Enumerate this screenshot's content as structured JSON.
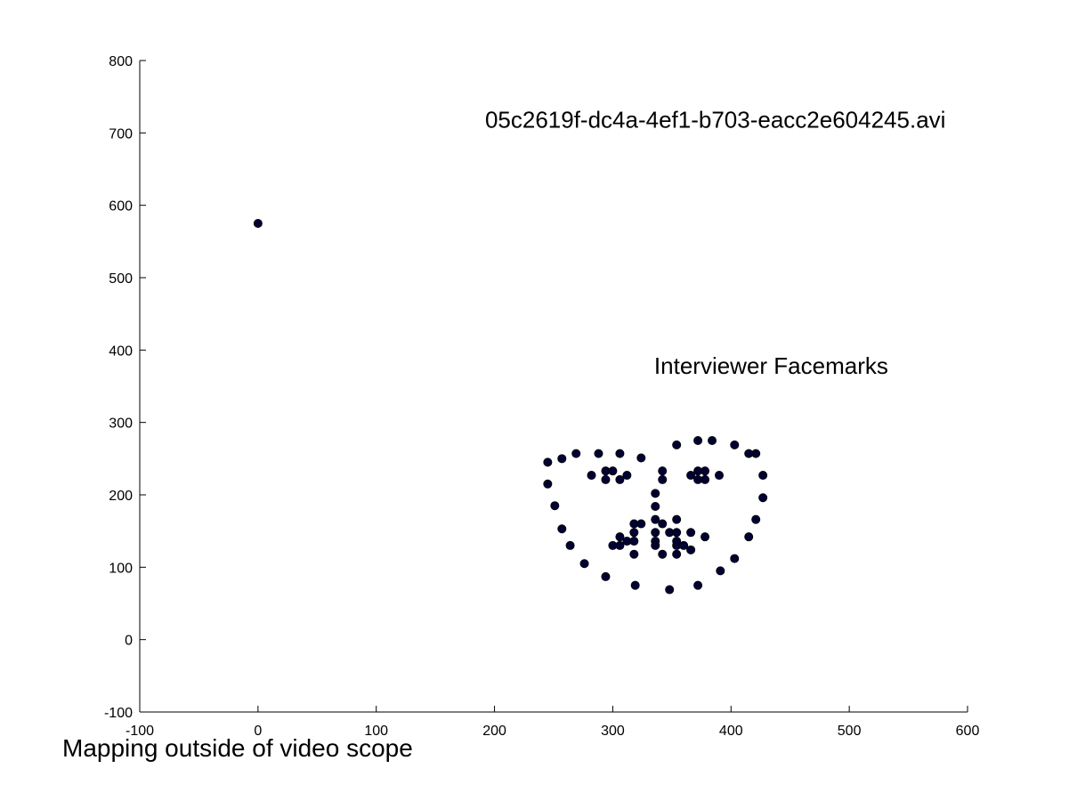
{
  "chart_data": {
    "type": "scatter",
    "title": "",
    "xlabel": "",
    "ylabel": "",
    "xlim": [
      -100,
      600
    ],
    "ylim": [
      -100,
      800
    ],
    "x_ticks": [
      -100,
      0,
      100,
      200,
      300,
      400,
      500,
      600
    ],
    "y_ticks": [
      -100,
      0,
      100,
      200,
      300,
      400,
      500,
      600,
      700,
      800
    ],
    "grid": false,
    "legend": "none",
    "marker_color": "#000033",
    "annotations": [
      {
        "text": "05c2619f-dc4a-4ef1-b703-eacc2e604245.avi",
        "x": 192,
        "y": 700
      },
      {
        "text": "Interviewer Facemarks",
        "x": 335,
        "y": 365
      }
    ],
    "footer_text": "Mapping outside of video scope",
    "series": [
      {
        "points": [
          [
            0,
            575
          ],
          [
            245,
            245
          ],
          [
            245,
            215
          ],
          [
            251,
            185
          ],
          [
            257,
            153
          ],
          [
            264,
            130
          ],
          [
            276,
            105
          ],
          [
            294,
            87
          ],
          [
            319,
            75
          ],
          [
            348,
            69
          ],
          [
            372,
            75
          ],
          [
            391,
            95
          ],
          [
            403,
            112
          ],
          [
            415,
            142
          ],
          [
            421,
            166
          ],
          [
            427,
            196
          ],
          [
            427,
            227
          ],
          [
            421,
            257
          ],
          [
            257,
            250
          ],
          [
            269,
            257
          ],
          [
            288,
            257
          ],
          [
            306,
            257
          ],
          [
            324,
            251
          ],
          [
            354,
            269
          ],
          [
            372,
            275
          ],
          [
            384,
            275
          ],
          [
            403,
            269
          ],
          [
            415,
            257
          ],
          [
            342,
            233
          ],
          [
            342,
            221
          ],
          [
            336,
            202
          ],
          [
            336,
            184
          ],
          [
            336,
            166
          ],
          [
            318,
            160
          ],
          [
            324,
            160
          ],
          [
            342,
            160
          ],
          [
            354,
            166
          ],
          [
            282,
            227
          ],
          [
            294,
            233
          ],
          [
            300,
            233
          ],
          [
            312,
            227
          ],
          [
            306,
            221
          ],
          [
            294,
            221
          ],
          [
            366,
            227
          ],
          [
            372,
            233
          ],
          [
            378,
            233
          ],
          [
            390,
            227
          ],
          [
            378,
            221
          ],
          [
            372,
            221
          ],
          [
            300,
            130
          ],
          [
            306,
            142
          ],
          [
            312,
            136
          ],
          [
            318,
            148
          ],
          [
            318,
            136
          ],
          [
            336,
            148
          ],
          [
            336,
            136
          ],
          [
            348,
            148
          ],
          [
            354,
            148
          ],
          [
            366,
            148
          ],
          [
            378,
            142
          ],
          [
            366,
            124
          ],
          [
            354,
            118
          ],
          [
            342,
            118
          ],
          [
            318,
            118
          ],
          [
            306,
            130
          ],
          [
            336,
            130
          ],
          [
            354,
            130
          ],
          [
            360,
            130
          ],
          [
            354,
            136
          ]
        ]
      }
    ]
  }
}
